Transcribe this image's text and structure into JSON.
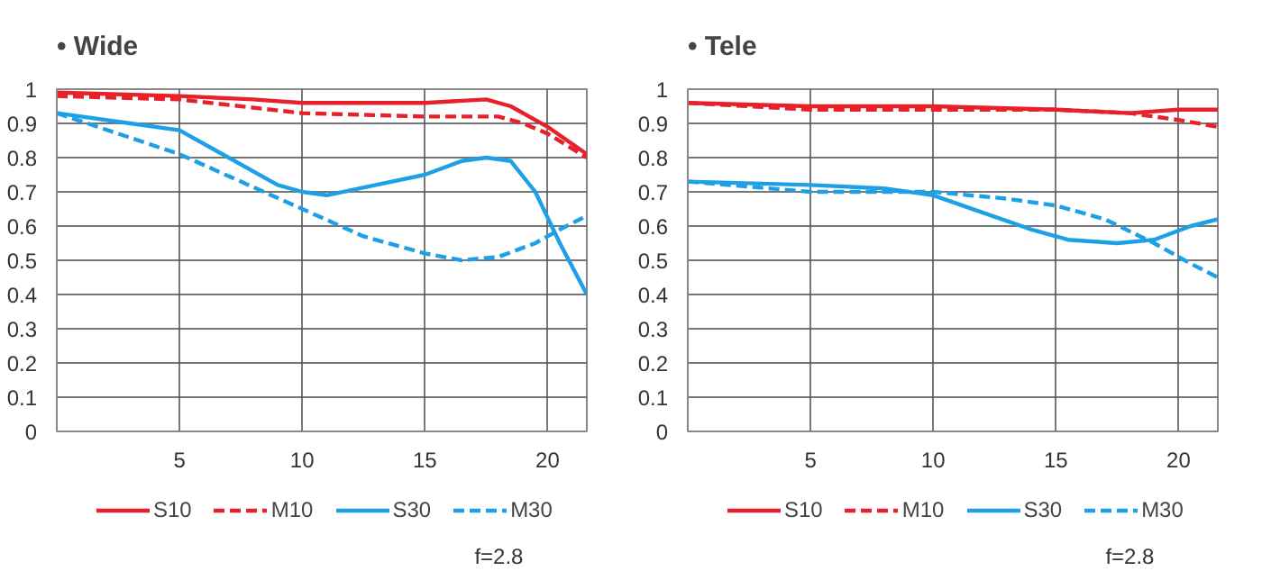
{
  "chart_data": [
    {
      "type": "line",
      "title": "• Wide",
      "xlim": [
        0,
        21.6
      ],
      "xticks": [
        5,
        10,
        15,
        20
      ],
      "ylim": [
        0,
        1
      ],
      "yticks": [
        0,
        0.1,
        0.2,
        0.3,
        0.4,
        0.5,
        0.6,
        0.7,
        0.8,
        0.9,
        1
      ],
      "grid": true,
      "legend": "bottom",
      "annotations": [
        "f=2.8"
      ],
      "series": [
        {
          "name": "S10",
          "color": "#e8202a",
          "line_style": "solid",
          "x": [
            0,
            5,
            8,
            10,
            12,
            15,
            17.5,
            18.5,
            20,
            21.6
          ],
          "values": [
            0.99,
            0.98,
            0.97,
            0.96,
            0.96,
            0.96,
            0.97,
            0.95,
            0.89,
            0.81
          ]
        },
        {
          "name": "M10",
          "color": "#e8202a",
          "line_style": "dashed",
          "x": [
            0,
            5,
            10,
            15,
            18,
            19,
            20,
            21.6
          ],
          "values": [
            0.98,
            0.97,
            0.93,
            0.92,
            0.92,
            0.9,
            0.87,
            0.8
          ]
        },
        {
          "name": "S30",
          "color": "#1ea0e6",
          "line_style": "solid",
          "x": [
            0,
            3,
            5,
            7,
            9,
            10,
            11,
            13,
            15,
            16.5,
            17.5,
            18.5,
            19.5,
            20.5,
            21.6
          ],
          "values": [
            0.93,
            0.9,
            0.88,
            0.8,
            0.72,
            0.7,
            0.69,
            0.72,
            0.75,
            0.79,
            0.8,
            0.79,
            0.7,
            0.55,
            0.4
          ]
        },
        {
          "name": "M30",
          "color": "#1ea0e6",
          "line_style": "dashed",
          "x": [
            0,
            2.5,
            5,
            7.5,
            10,
            12.5,
            15,
            16.5,
            18,
            19.5,
            20.5,
            21.6
          ],
          "values": [
            0.93,
            0.87,
            0.81,
            0.73,
            0.65,
            0.57,
            0.52,
            0.5,
            0.51,
            0.55,
            0.59,
            0.63
          ]
        }
      ]
    },
    {
      "type": "line",
      "title": "• Tele",
      "xlim": [
        0,
        21.6
      ],
      "xticks": [
        5,
        10,
        15,
        20
      ],
      "ylim": [
        0,
        1
      ],
      "yticks": [
        0,
        0.1,
        0.2,
        0.3,
        0.4,
        0.5,
        0.6,
        0.7,
        0.8,
        0.9,
        1
      ],
      "grid": true,
      "legend": "bottom",
      "annotations": [
        "f=2.8"
      ],
      "series": [
        {
          "name": "S10",
          "color": "#e8202a",
          "line_style": "solid",
          "x": [
            0,
            5,
            10,
            15,
            18,
            20,
            21.6
          ],
          "values": [
            0.96,
            0.95,
            0.95,
            0.94,
            0.93,
            0.94,
            0.94
          ]
        },
        {
          "name": "M10",
          "color": "#e8202a",
          "line_style": "dashed",
          "x": [
            0,
            5,
            10,
            15,
            18,
            20,
            21.6
          ],
          "values": [
            0.96,
            0.94,
            0.94,
            0.94,
            0.93,
            0.91,
            0.89
          ]
        },
        {
          "name": "S30",
          "color": "#1ea0e6",
          "line_style": "solid",
          "x": [
            0,
            5,
            8,
            10,
            12,
            14,
            15.5,
            17.5,
            19,
            20.5,
            21.6
          ],
          "values": [
            0.73,
            0.72,
            0.71,
            0.69,
            0.64,
            0.59,
            0.56,
            0.55,
            0.56,
            0.6,
            0.62
          ]
        },
        {
          "name": "M30",
          "color": "#1ea0e6",
          "line_style": "dashed",
          "x": [
            0,
            5,
            10,
            13,
            15,
            17,
            19,
            20.5,
            21.6
          ],
          "values": [
            0.73,
            0.7,
            0.7,
            0.68,
            0.66,
            0.62,
            0.55,
            0.49,
            0.45
          ]
        }
      ]
    }
  ]
}
